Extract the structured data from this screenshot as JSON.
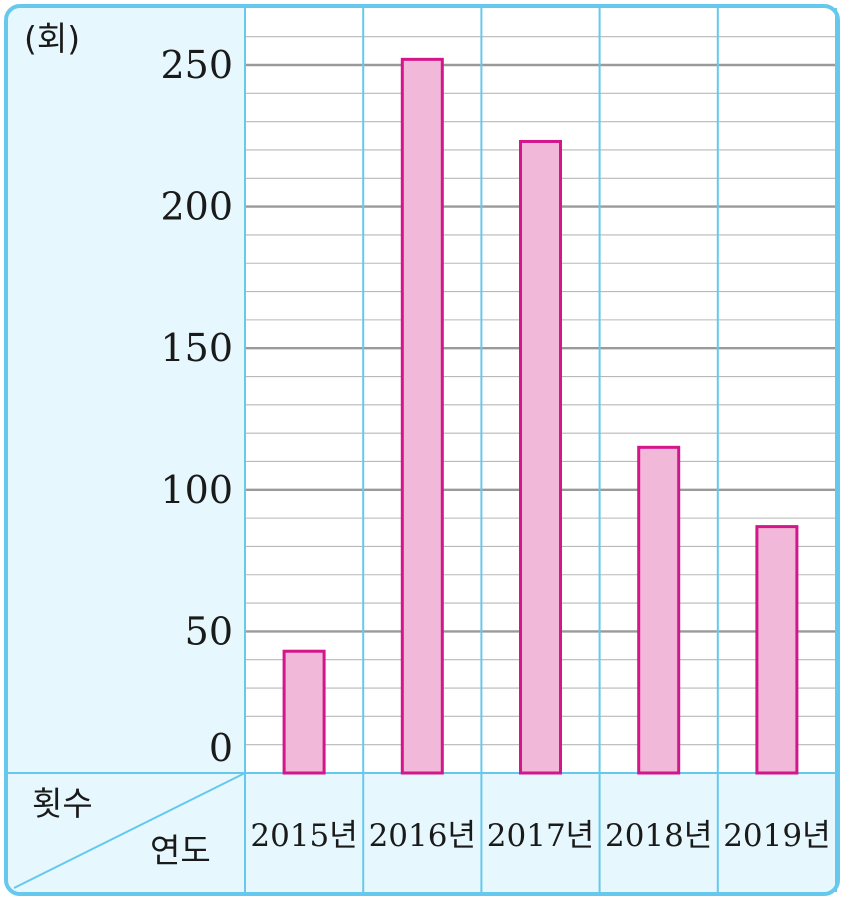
{
  "chart_data": {
    "type": "bar",
    "categories": [
      "2015년",
      "2016년",
      "2017년",
      "2018년",
      "2019년"
    ],
    "values": [
      43,
      252,
      223,
      115,
      87
    ],
    "unit": "(회)",
    "ylim": [
      0,
      250
    ],
    "yticks": [
      "0",
      "50",
      "100",
      "150",
      "200",
      "250"
    ],
    "row_label": "횟수",
    "col_label": "연도",
    "grid": true,
    "colors": {
      "bar_fill": "#f2b8d9",
      "bar_stroke": "#d4168c",
      "panel": "#e6f8fd",
      "border": "#66c8ec",
      "major_grid": "#9a9a9a",
      "minor_grid": "#b8b8b8"
    }
  }
}
